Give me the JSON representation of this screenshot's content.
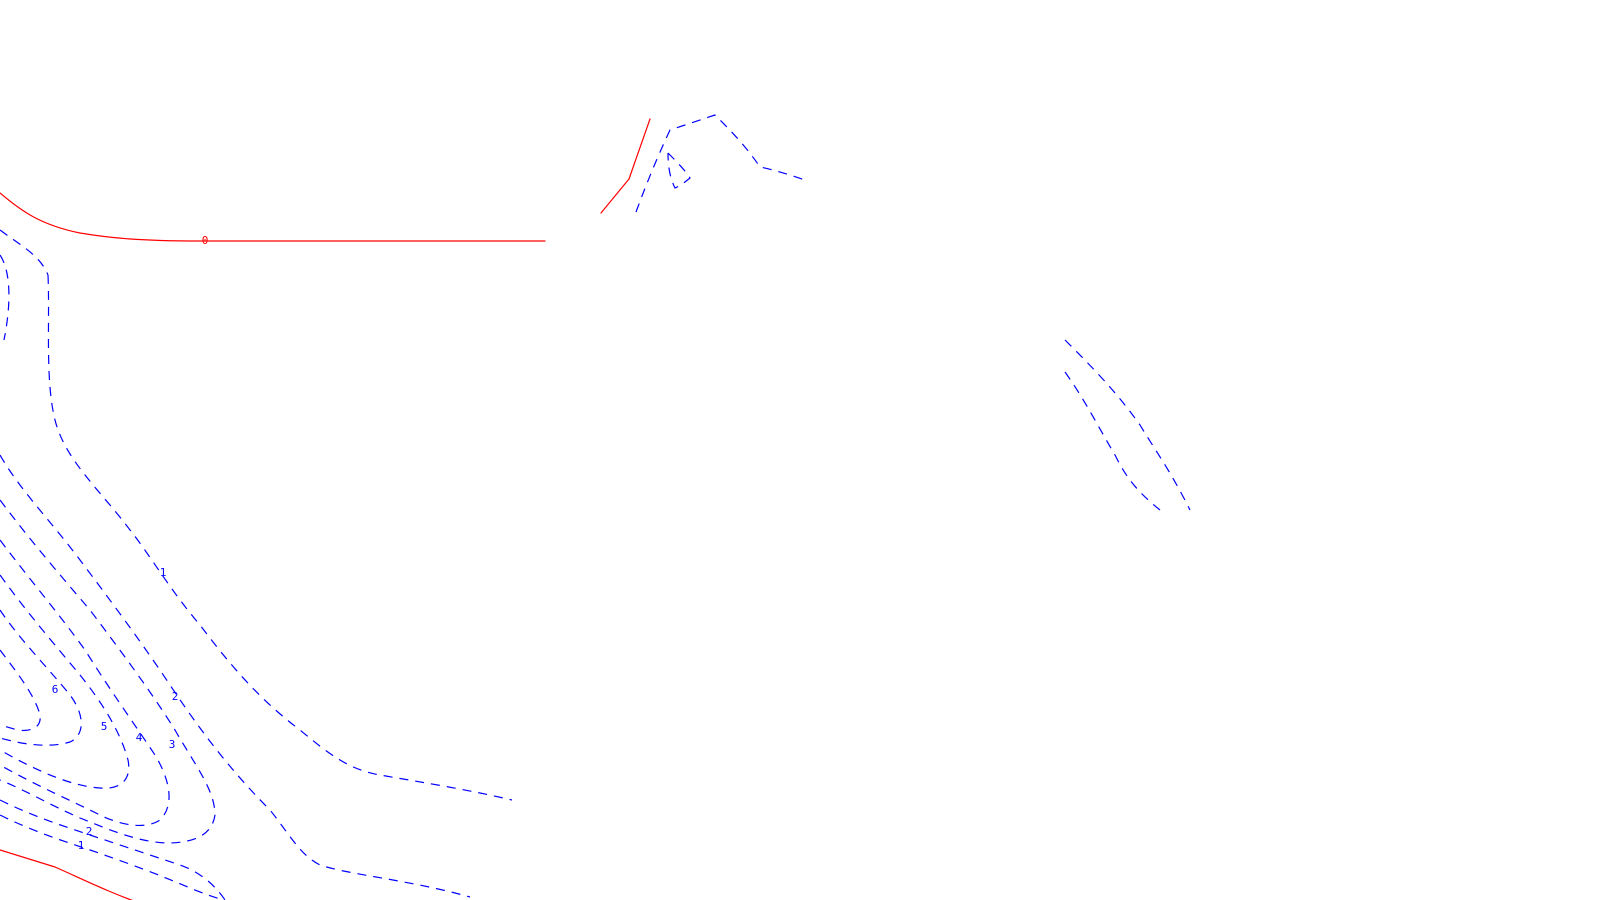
{
  "colors": {
    "background": "#ffffff",
    "zero_contour": "#ff0000",
    "positive_contour": "#0000ff"
  },
  "contour_labels": {
    "zero_top": "0",
    "one_upper": "1",
    "two_upper": "2",
    "three": "3",
    "four": "4",
    "five": "5",
    "six": "6",
    "two_lower": "2",
    "one_lower": "1"
  }
}
